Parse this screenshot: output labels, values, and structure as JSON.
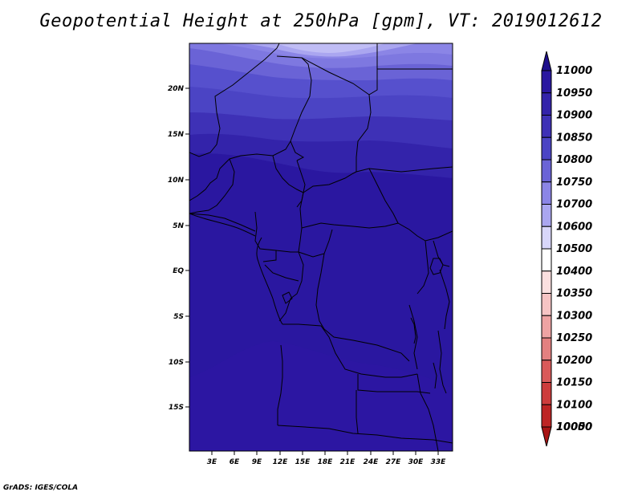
{
  "title": "Geopotential Height at 250hPa [gpm], VT: 2019012612",
  "credit": "GrADS: IGES/COLA",
  "map": {
    "lat_ticks": [
      "20N",
      "15N",
      "10N",
      "5N",
      "EQ",
      "5S",
      "10S",
      "15S"
    ],
    "lon_ticks": [
      "3E",
      "6E",
      "9E",
      "12E",
      "15E",
      "18E",
      "21E",
      "24E",
      "27E",
      "30E",
      "33E"
    ]
  },
  "colorbar": {
    "levels": [
      "11000",
      "10950",
      "10900",
      "10850",
      "10800",
      "10750",
      "10700",
      "10600",
      "10500",
      "10400",
      "10350",
      "10300",
      "10250",
      "10200",
      "10150",
      "10100",
      "10050",
      "10000"
    ],
    "colors": [
      "#1e0f8c",
      "#2a17a0",
      "#3323aa",
      "#3e31b6",
      "#4b44c4",
      "#6a63d6",
      "#8b85e6",
      "#aaa6f0",
      "#d8d6fa",
      "#ffffff",
      "#fbe0e0",
      "#f6c4c4",
      "#eea3a3",
      "#e38080",
      "#d95a5a",
      "#cd3c3c",
      "#bd2424",
      "#a81414"
    ]
  }
}
